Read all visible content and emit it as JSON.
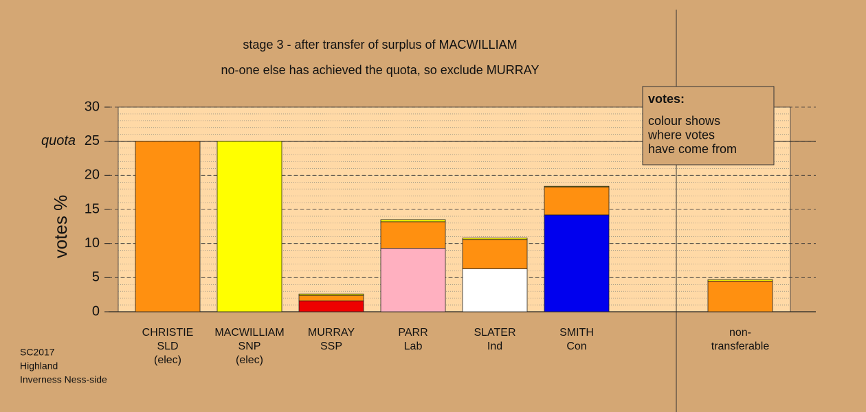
{
  "chart_data": {
    "type": "bar",
    "stacked": true,
    "title": "stage 3 - after transfer of surplus of MACWILLIAM",
    "subtitle": "no-one else has achieved the quota, so exclude MURRAY",
    "y_label": "votes %",
    "quota": {
      "value": 25,
      "label": "quota"
    },
    "legend_title": "votes:",
    "legend_text": [
      "colour shows",
      "where votes",
      "have come from"
    ],
    "footnote": [
      "SC2017",
      "Highland",
      "Inverness Ness-side"
    ],
    "categories": [
      [
        "CHRISTIE",
        "SLD",
        "(elec)"
      ],
      [
        "MACWILLIAM",
        "SNP",
        "(elec)"
      ],
      [
        "MURRAY",
        "SSP"
      ],
      [
        "PARR",
        "Lab"
      ],
      [
        "SLATER",
        "Ind"
      ],
      [
        "SMITH",
        "Con"
      ],
      null,
      [
        "non-",
        "transferable"
      ]
    ],
    "series": [
      {
        "color": "#ee0000",
        "values": [
          null,
          null,
          1.6,
          null,
          null,
          null,
          null,
          null
        ]
      },
      {
        "color": "#ffb0c0",
        "values": [
          null,
          null,
          null,
          9.3,
          null,
          null,
          null,
          null
        ]
      },
      {
        "color": "#ffffff",
        "values": [
          null,
          null,
          null,
          null,
          6.3,
          null,
          null,
          null
        ]
      },
      {
        "color": "#0000ee",
        "values": [
          null,
          null,
          null,
          null,
          null,
          14.2,
          null,
          null
        ]
      },
      {
        "color": "#ff9010",
        "values": [
          25,
          null,
          0.8,
          3.9,
          4.3,
          4.1,
          null,
          4.5
        ]
      },
      {
        "color": "#ffff00",
        "values": [
          null,
          25,
          0.2,
          0.3,
          0.2,
          0.1,
          null,
          0.2
        ]
      }
    ],
    "ylim": [
      0,
      30
    ],
    "yticks": [
      0,
      5,
      10,
      15,
      20,
      25,
      30
    ],
    "grid": true
  }
}
